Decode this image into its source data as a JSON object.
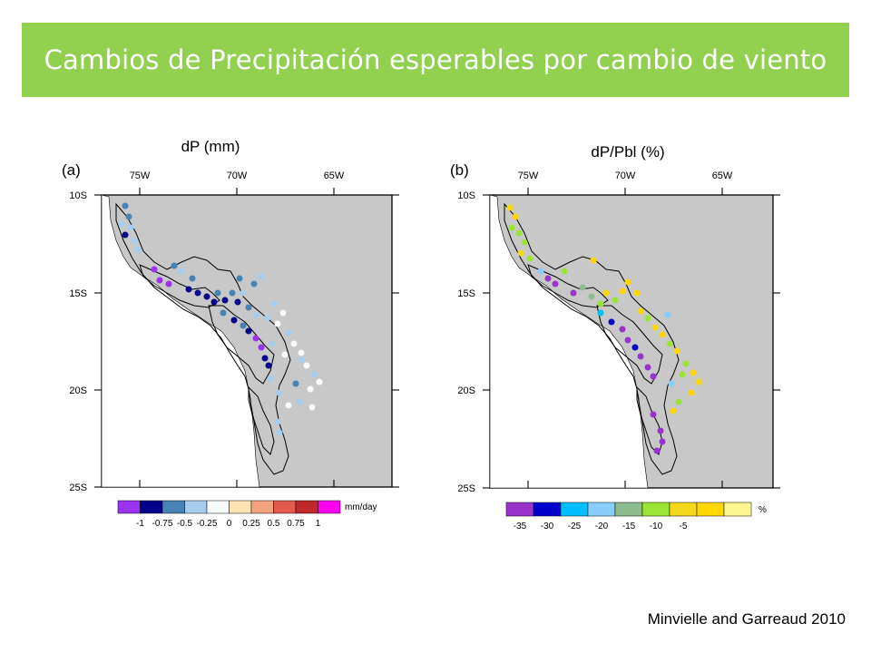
{
  "slide": {
    "title": "Cambios de Precipitación esperables por cambio de viento",
    "citation": "Minvielle and Garreaud 2010",
    "banner_color": "#92d050"
  },
  "maps": [
    {
      "id": "a",
      "panel_label": "(a)",
      "heading": "dP (mm)",
      "lon_ticks": [
        "75W",
        "70W",
        "65W"
      ],
      "lat_ticks": [
        "10S",
        "15S",
        "20S",
        "25S"
      ],
      "colorbar": {
        "unit": "mm/day",
        "colors": [
          "#9933ee",
          "#00008b",
          "#4682b4",
          "#a7cdee",
          "#f7fbfb",
          "#fde2b3",
          "#f4a380",
          "#e25a4e",
          "#c0292b",
          "#ff00ee"
        ],
        "labels": [
          "-1",
          "-0.75",
          "-0.5",
          "-0.25",
          "0",
          "0.25",
          "0.5",
          "0.75",
          "1"
        ]
      }
    },
    {
      "id": "b",
      "panel_label": "(b)",
      "heading": "dP/Pbl (%)",
      "lon_ticks": [
        "75W",
        "70W",
        "65W"
      ],
      "lat_ticks": [
        "10S",
        "15S",
        "20S",
        "25S"
      ],
      "colorbar": {
        "unit": "%",
        "colors": [
          "#9933cc",
          "#0000cd",
          "#00bfff",
          "#87cefa",
          "#8fbc8f",
          "#9ae534",
          "#f4d81c",
          "#ffd700",
          "#fff68f"
        ],
        "labels": [
          "-35",
          "-30",
          "-25",
          "-20",
          "-15",
          "-10",
          "-5"
        ]
      }
    }
  ]
}
